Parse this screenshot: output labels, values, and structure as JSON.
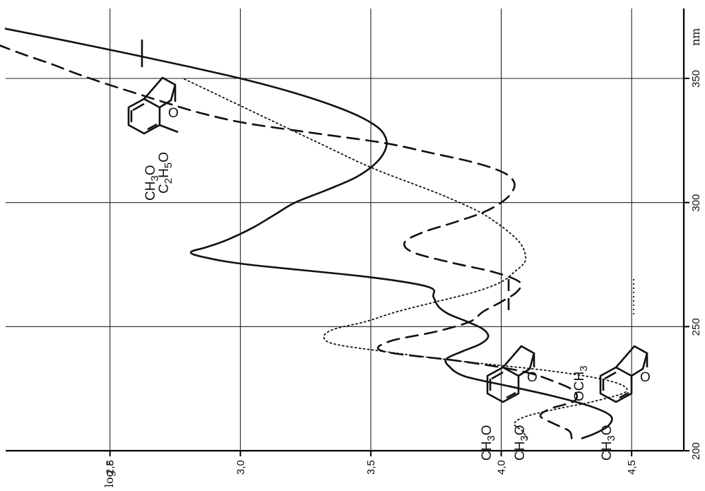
{
  "chart_data": {
    "type": "line",
    "orientation": "rotated-90-cw",
    "xlabel": "nm",
    "ylabel": "log ε",
    "xlim": [
      200,
      370
    ],
    "ylim": [
      2.1,
      4.7
    ],
    "xticks": [
      "200",
      "250",
      "300",
      "350"
    ],
    "yticks": [
      "4,5",
      "4,0",
      "3,5",
      "3,0",
      "2,5"
    ],
    "grid": true,
    "legend_placement": "inline-structures",
    "series": [
      {
        "style": "solid",
        "color": "#111111",
        "x": [
          205,
          207,
          210,
          214,
          218,
          222,
          226,
          230,
          234,
          237,
          240,
          243,
          246,
          249,
          252,
          255,
          258,
          262,
          266,
          270,
          275,
          278,
          280,
          282,
          285,
          290,
          295,
          300,
          305,
          310,
          315,
          320,
          325,
          330,
          335,
          340,
          345,
          350,
          355,
          360,
          365,
          370
        ],
        "y": [
          4.31,
          4.36,
          4.41,
          4.42,
          4.34,
          4.2,
          4.03,
          3.86,
          3.8,
          3.79,
          3.85,
          3.92,
          3.95,
          3.93,
          3.87,
          3.8,
          3.76,
          3.74,
          3.72,
          3.49,
          3.03,
          2.86,
          2.81,
          2.87,
          2.95,
          3.05,
          3.13,
          3.21,
          3.33,
          3.44,
          3.51,
          3.55,
          3.56,
          3.53,
          3.45,
          3.33,
          3.18,
          3.0,
          2.79,
          2.57,
          2.34,
          2.1
        ]
      },
      {
        "style": "dashed",
        "color": "#111111",
        "x": [
          205,
          208,
          211,
          214,
          217,
          220,
          224,
          228,
          232,
          236,
          240,
          244,
          248,
          252,
          256,
          260,
          264,
          268,
          272,
          276,
          280,
          284,
          288,
          292,
          296,
          300,
          304,
          308,
          312,
          316,
          320,
          324,
          328,
          332,
          336,
          340,
          344,
          348,
          352,
          356,
          360,
          364
        ],
        "y": [
          4.27,
          4.26,
          4.2,
          4.15,
          4.19,
          4.28,
          4.28,
          4.2,
          4.08,
          3.85,
          3.55,
          3.57,
          3.75,
          3.88,
          3.93,
          4.0,
          4.06,
          4.07,
          3.97,
          3.8,
          3.66,
          3.63,
          3.7,
          3.82,
          3.93,
          4.0,
          4.04,
          4.05,
          4.01,
          3.9,
          3.73,
          3.55,
          3.28,
          3.02,
          2.85,
          2.72,
          2.6,
          2.48,
          2.37,
          2.27,
          2.16,
          2.06
        ]
      },
      {
        "style": "dotted",
        "color": "#111111",
        "x": [
          205,
          208,
          211,
          214,
          217,
          220,
          224,
          228,
          232,
          236,
          240,
          243,
          246,
          249,
          252,
          256,
          260,
          264,
          268,
          272,
          276,
          280,
          284,
          288,
          292,
          296,
          300,
          304,
          308,
          312,
          316,
          320,
          324,
          328,
          332,
          336,
          340,
          344,
          348,
          350
        ],
        "y": [
          4.1,
          4.08,
          4.05,
          4.1,
          4.22,
          4.36,
          4.48,
          4.42,
          4.2,
          3.85,
          3.55,
          3.36,
          3.32,
          3.36,
          3.48,
          3.6,
          3.75,
          3.9,
          4.0,
          4.05,
          4.09,
          4.09,
          4.07,
          4.03,
          3.98,
          3.92,
          3.84,
          3.75,
          3.65,
          3.55,
          3.46,
          3.38,
          3.3,
          3.22,
          3.14,
          3.06,
          2.98,
          2.9,
          2.82,
          2.78
        ]
      }
    ],
    "annotations": {
      "struct1": {
        "o1": "CH",
        "o1_sub": "3",
        "o1_tail": "O",
        "o2": "C",
        "o2_sub1": "2",
        "o2_mid": "H",
        "o2_sub2": "5",
        "o2_tail": "O",
        "keto": "O"
      },
      "struct2": {
        "o1": "CH",
        "o1_sub": "3",
        "o1_tail": "O",
        "o2": "CH",
        "o2_sub": "3",
        "o2_tail": "O",
        "keto": "O"
      },
      "struct3": {
        "o1": "CH",
        "o1_sub": "3",
        "o1_tail": "O",
        "o2": "OCH",
        "o2_sub": "3",
        "keto": "O"
      }
    }
  }
}
